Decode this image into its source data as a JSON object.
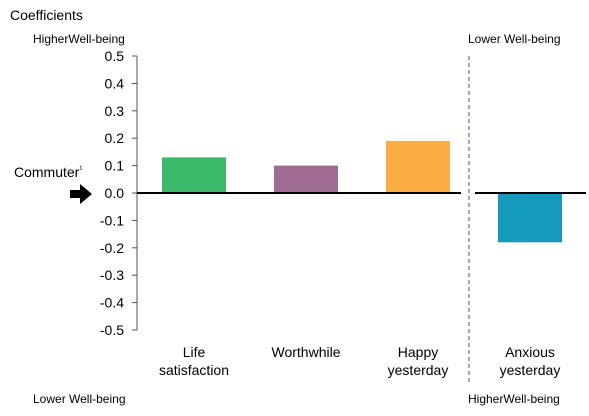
{
  "chart_data": {
    "type": "bar",
    "title": "Coefficients",
    "ylabel": "",
    "xlabel": "",
    "ylim": [
      -0.5,
      0.5
    ],
    "yticks": [
      0.5,
      0.4,
      0.3,
      0.2,
      0.1,
      0.0,
      -0.1,
      -0.2,
      -0.3,
      -0.4,
      -0.5
    ],
    "ytick_labels": [
      "0.5",
      "0.4",
      "0.3",
      "0.2",
      "0.1",
      "0.0",
      "-0.1",
      "-0.2",
      "-0.3",
      "-0.4",
      "-0.5"
    ],
    "categories": [
      {
        "label_lines": [
          "Life",
          "satisfaction"
        ],
        "value": 0.13,
        "color": "#3cb96a"
      },
      {
        "label_lines": [
          "Worthwhile"
        ],
        "value": 0.1,
        "color": "#a06c93"
      },
      {
        "label_lines": [
          "Happy",
          "yesterday"
        ],
        "value": 0.19,
        "color": "#fbad43"
      },
      {
        "label_lines": [
          "Anxious",
          "yesterday"
        ],
        "value": -0.18,
        "color": "#1599bd"
      }
    ],
    "baseline_label": "Commuter",
    "baseline_marker": "¹",
    "annotations": {
      "top_left": "HigherWell-being",
      "top_right": "Lower Well-being",
      "bottom_left": "Lower Well-being",
      "bottom_right": "HigherWell-being"
    },
    "divider": "dashed",
    "grid": false
  }
}
